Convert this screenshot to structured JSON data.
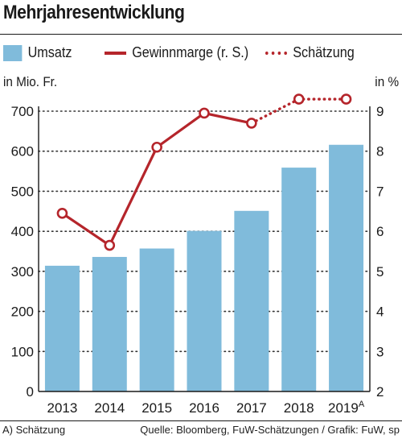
{
  "title": "Mehrjahresentwicklung",
  "legend": {
    "bar_label": "Umsatz",
    "line_label": "Gewinnmarge (r. S.)",
    "estimate_label": "Schätzung"
  },
  "footer": {
    "note": "A) Schätzung",
    "source": "Quelle: Bloomberg, FuW-Schätzungen / Grafik: FuW, sp"
  },
  "colors": {
    "bar": "#80bbdb",
    "line": "#b5252b",
    "grid": "#333333"
  },
  "chart_data": {
    "type": "bar",
    "categories": [
      "2013",
      "2014",
      "2015",
      "2016",
      "2017",
      "2018",
      "2019"
    ],
    "category_footnote": {
      "index": 6,
      "mark": "A"
    },
    "bar_series": {
      "name": "Umsatz",
      "values": [
        314,
        336,
        357,
        401,
        451,
        559,
        616
      ]
    },
    "line_series": {
      "name": "Gewinnmarge (r. S.)",
      "values": [
        6.45,
        5.65,
        8.1,
        8.95,
        8.7,
        9.3,
        9.3
      ],
      "estimate_from_index": 4
    },
    "y_left": {
      "label": "in Mio. Fr.",
      "min": 0,
      "max": 700,
      "ticks": [
        0,
        100,
        200,
        300,
        400,
        500,
        600,
        700
      ]
    },
    "y_right": {
      "label": "in %",
      "min": 2,
      "max": 9,
      "ticks": [
        2,
        3,
        4,
        5,
        6,
        7,
        8,
        9
      ]
    },
    "grid": true,
    "legend_position": "top"
  }
}
